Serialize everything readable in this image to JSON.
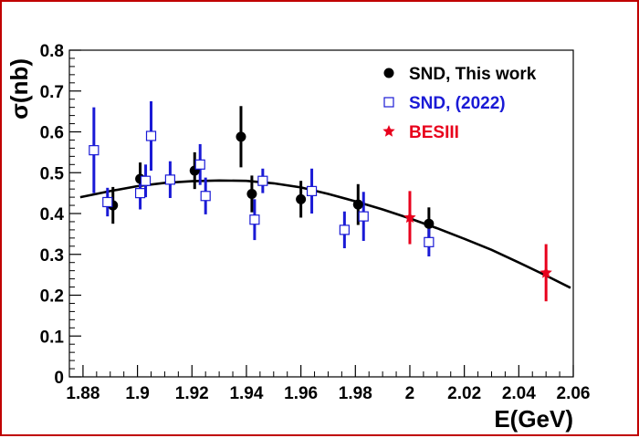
{
  "chart_data": {
    "type": "scatter",
    "xlabel": "E(GeV)",
    "ylabel": "σ(nb)",
    "xlim": [
      1.875,
      2.06
    ],
    "ylim": [
      0,
      0.8
    ],
    "x_ticks": [
      "1.88",
      "1.9",
      "1.92",
      "1.94",
      "1.96",
      "1.98",
      "2",
      "2.02",
      "2.04",
      "2.06"
    ],
    "y_ticks": [
      "0",
      "0.1",
      "0.2",
      "0.3",
      "0.4",
      "0.5",
      "0.6",
      "0.7",
      "0.8"
    ],
    "legend_position": "top-right",
    "series": [
      {
        "name": "SND, This work",
        "marker": "filled-circle",
        "color": "#000000",
        "points": [
          {
            "x": 1.891,
            "y": 0.42,
            "err": 0.045
          },
          {
            "x": 1.901,
            "y": 0.485,
            "err": 0.04
          },
          {
            "x": 1.921,
            "y": 0.505,
            "err": 0.045
          },
          {
            "x": 1.938,
            "y": 0.588,
            "err": 0.075
          },
          {
            "x": 1.942,
            "y": 0.448,
            "err": 0.045
          },
          {
            "x": 1.96,
            "y": 0.435,
            "err": 0.045
          },
          {
            "x": 1.981,
            "y": 0.422,
            "err": 0.05
          },
          {
            "x": 2.007,
            "y": 0.375,
            "err": 0.04
          }
        ]
      },
      {
        "name": "SND, (2022)",
        "marker": "open-square",
        "color": "#1a1ad6",
        "points": [
          {
            "x": 1.884,
            "y": 0.555,
            "err": 0.105
          },
          {
            "x": 1.889,
            "y": 0.428,
            "err": 0.035
          },
          {
            "x": 1.901,
            "y": 0.45,
            "err": 0.04
          },
          {
            "x": 1.903,
            "y": 0.48,
            "err": 0.04
          },
          {
            "x": 1.905,
            "y": 0.59,
            "err": 0.085
          },
          {
            "x": 1.912,
            "y": 0.483,
            "err": 0.045
          },
          {
            "x": 1.923,
            "y": 0.52,
            "err": 0.05
          },
          {
            "x": 1.925,
            "y": 0.443,
            "err": 0.045
          },
          {
            "x": 1.943,
            "y": 0.385,
            "err": 0.05
          },
          {
            "x": 1.946,
            "y": 0.48,
            "err": 0.03
          },
          {
            "x": 1.964,
            "y": 0.455,
            "err": 0.055
          },
          {
            "x": 1.976,
            "y": 0.36,
            "err": 0.045
          },
          {
            "x": 1.983,
            "y": 0.393,
            "err": 0.06
          },
          {
            "x": 2.007,
            "y": 0.33,
            "err": 0.035
          }
        ]
      },
      {
        "name": "BESIII",
        "marker": "star",
        "color": "#e8001c",
        "points": [
          {
            "x": 2.0,
            "y": 0.39,
            "err": 0.065
          },
          {
            "x": 2.05,
            "y": 0.255,
            "err": 0.07
          }
        ]
      }
    ],
    "fit_curve": {
      "color": "#000000",
      "x": [
        1.879,
        1.89,
        1.9,
        1.91,
        1.92,
        1.93,
        1.94,
        1.95,
        1.96,
        1.97,
        1.98,
        1.99,
        2.0,
        2.01,
        2.02,
        2.03,
        2.04,
        2.05,
        2.059
      ],
      "y": [
        0.44,
        0.455,
        0.467,
        0.475,
        0.479,
        0.481,
        0.48,
        0.474,
        0.464,
        0.448,
        0.43,
        0.41,
        0.388,
        0.364,
        0.338,
        0.311,
        0.28,
        0.248,
        0.218
      ]
    }
  }
}
